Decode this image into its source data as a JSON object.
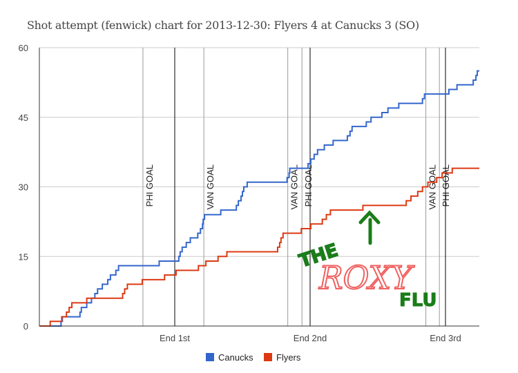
{
  "chart_data": {
    "type": "line",
    "title": "Shot attempt (fenwick) chart for 2013-12-30: Flyers 4 at Canucks 3 (SO)",
    "xlabel": "",
    "ylabel": "",
    "xlim_minutes": [
      0,
      65
    ],
    "ylim": [
      0,
      60
    ],
    "yticks": [
      0,
      15,
      30,
      45,
      60
    ],
    "grid": true,
    "legend_position": "bottom",
    "period_markers": [
      {
        "minute": 20,
        "label": "End 1st"
      },
      {
        "minute": 40,
        "label": "End 2nd"
      },
      {
        "minute": 60,
        "label": "End 3rd"
      }
    ],
    "goal_markers": [
      {
        "minute": 15.3,
        "label": "PHI GOAL"
      },
      {
        "minute": 24.3,
        "label": "VAN GOAL"
      },
      {
        "minute": 36.7,
        "label": "VAN GOAL"
      },
      {
        "minute": 38.8,
        "label": "PHI GOAL"
      },
      {
        "minute": 57.1,
        "label": "VAN GOAL"
      },
      {
        "minute": 59.1,
        "label": "PHI GOAL"
      }
    ],
    "series": [
      {
        "name": "Canucks",
        "color": "#3366cc",
        "points": [
          [
            0,
            0
          ],
          [
            3.2,
            1
          ],
          [
            3.4,
            2
          ],
          [
            6.0,
            3
          ],
          [
            6.2,
            4
          ],
          [
            7.0,
            5
          ],
          [
            7.7,
            6
          ],
          [
            8.2,
            7
          ],
          [
            8.6,
            8
          ],
          [
            9.3,
            9
          ],
          [
            10.1,
            10
          ],
          [
            10.5,
            11
          ],
          [
            11.3,
            12
          ],
          [
            11.7,
            13
          ],
          [
            17.7,
            14
          ],
          [
            20.6,
            15
          ],
          [
            20.8,
            16
          ],
          [
            21.1,
            17
          ],
          [
            21.7,
            18
          ],
          [
            22.3,
            19
          ],
          [
            23.4,
            20
          ],
          [
            23.8,
            21
          ],
          [
            24.1,
            22
          ],
          [
            24.2,
            23
          ],
          [
            24.4,
            24
          ],
          [
            26.8,
            25
          ],
          [
            29.1,
            26
          ],
          [
            29.4,
            27
          ],
          [
            29.8,
            28
          ],
          [
            30.0,
            29
          ],
          [
            30.2,
            30
          ],
          [
            30.7,
            31
          ],
          [
            36.6,
            32
          ],
          [
            36.9,
            33
          ],
          [
            37.0,
            34
          ],
          [
            39.7,
            35
          ],
          [
            40.1,
            36
          ],
          [
            40.6,
            37
          ],
          [
            41.1,
            38
          ],
          [
            42.1,
            39
          ],
          [
            43.4,
            40
          ],
          [
            45.5,
            41
          ],
          [
            45.9,
            42
          ],
          [
            46.2,
            43
          ],
          [
            48.3,
            44
          ],
          [
            49.0,
            45
          ],
          [
            50.6,
            46
          ],
          [
            51.5,
            47
          ],
          [
            53.1,
            48
          ],
          [
            56.6,
            49
          ],
          [
            56.9,
            50
          ],
          [
            60.5,
            51
          ],
          [
            61.7,
            52
          ],
          [
            64.1,
            53
          ],
          [
            64.5,
            54
          ],
          [
            64.7,
            55
          ],
          [
            65.0,
            55
          ]
        ]
      },
      {
        "name": "Flyers",
        "color": "#dc3912",
        "points": [
          [
            0,
            0
          ],
          [
            1.6,
            1
          ],
          [
            3.3,
            2
          ],
          [
            4.0,
            3
          ],
          [
            4.4,
            4
          ],
          [
            4.8,
            5
          ],
          [
            7.0,
            6
          ],
          [
            12.3,
            7
          ],
          [
            12.6,
            8
          ],
          [
            13.0,
            9
          ],
          [
            15.2,
            10
          ],
          [
            18.5,
            11
          ],
          [
            20.2,
            12
          ],
          [
            23.5,
            13
          ],
          [
            24.6,
            14
          ],
          [
            26.4,
            15
          ],
          [
            27.7,
            16
          ],
          [
            35.2,
            17
          ],
          [
            35.5,
            18
          ],
          [
            35.7,
            19
          ],
          [
            36.0,
            20
          ],
          [
            38.7,
            21
          ],
          [
            40.1,
            22
          ],
          [
            41.8,
            23
          ],
          [
            42.4,
            24
          ],
          [
            43.0,
            25
          ],
          [
            47.8,
            26
          ],
          [
            54.2,
            27
          ],
          [
            54.9,
            28
          ],
          [
            55.9,
            29
          ],
          [
            56.6,
            30
          ],
          [
            57.4,
            31
          ],
          [
            58.7,
            32
          ],
          [
            59.5,
            33
          ],
          [
            61.0,
            34
          ],
          [
            65.0,
            34
          ]
        ]
      }
    ]
  },
  "annotation": {
    "word1": "THE",
    "word2": "ROXY",
    "word3": "FLU"
  }
}
